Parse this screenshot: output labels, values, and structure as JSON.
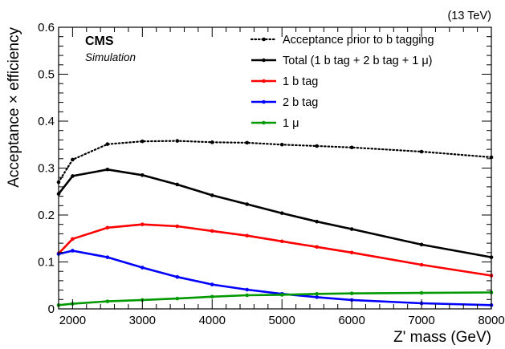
{
  "chart_data": {
    "type": "line",
    "energy": "(13 TeV)",
    "experiment": "CMS",
    "experiment_sub": "Simulation",
    "xlabel": "Z' mass (GeV)",
    "ylabel": "Acceptance × efficiency",
    "xlim": [
      1800,
      8000
    ],
    "ylim": [
      0,
      0.6
    ],
    "x_ticks": [
      2000,
      3000,
      4000,
      5000,
      6000,
      7000,
      8000
    ],
    "y_ticks": [
      0,
      0.1,
      0.2,
      0.3,
      0.4,
      0.5,
      0.6
    ],
    "x_tick_labels": [
      "2000",
      "3000",
      "4000",
      "5000",
      "6000",
      "7000",
      "8000"
    ],
    "y_tick_labels": [
      "0",
      "0.1",
      "0.2",
      "0.3",
      "0.4",
      "0.5",
      "0.6"
    ],
    "legend_position": "top-right",
    "series": [
      {
        "name": "Acceptance prior to b tagging",
        "color": "#000000",
        "style": "dotted",
        "x": [
          1800,
          2000,
          2500,
          3000,
          3500,
          4000,
          4500,
          5000,
          5500,
          6000,
          7000,
          8000
        ],
        "y": [
          0.27,
          0.318,
          0.351,
          0.357,
          0.358,
          0.355,
          0.354,
          0.35,
          0.347,
          0.344,
          0.335,
          0.323
        ]
      },
      {
        "name": "Total (1 b tag + 2 b tag + 1 μ)",
        "color": "#000000",
        "style": "solid",
        "x": [
          1800,
          2000,
          2500,
          3000,
          3500,
          4000,
          4500,
          5000,
          5500,
          6000,
          7000,
          8000
        ],
        "y": [
          0.245,
          0.283,
          0.297,
          0.285,
          0.265,
          0.242,
          0.223,
          0.204,
          0.186,
          0.17,
          0.137,
          0.11
        ]
      },
      {
        "name": "1 b tag",
        "color": "#ff0000",
        "style": "solid",
        "x": [
          1800,
          2000,
          2500,
          3000,
          3500,
          4000,
          4500,
          5000,
          5500,
          6000,
          7000,
          8000
        ],
        "y": [
          0.118,
          0.149,
          0.173,
          0.18,
          0.176,
          0.166,
          0.156,
          0.144,
          0.132,
          0.12,
          0.094,
          0.071
        ]
      },
      {
        "name": "2 b tag",
        "color": "#0000ff",
        "style": "solid",
        "x": [
          1800,
          2000,
          2500,
          3000,
          3500,
          4000,
          4500,
          5000,
          5500,
          6000,
          7000,
          8000
        ],
        "y": [
          0.117,
          0.124,
          0.11,
          0.088,
          0.068,
          0.052,
          0.041,
          0.032,
          0.025,
          0.019,
          0.012,
          0.008
        ]
      },
      {
        "name": "1 μ",
        "color": "#009900",
        "style": "solid",
        "x": [
          1800,
          2000,
          2500,
          3000,
          3500,
          4000,
          4500,
          5000,
          5500,
          6000,
          7000,
          8000
        ],
        "y": [
          0.008,
          0.011,
          0.016,
          0.019,
          0.022,
          0.026,
          0.029,
          0.03,
          0.032,
          0.033,
          0.034,
          0.035
        ]
      }
    ]
  }
}
